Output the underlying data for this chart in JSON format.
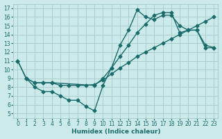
{
  "bg_color": "#cceaea",
  "grid_color": "#aacfcf",
  "line_color": "#1a6b6b",
  "line_width": 1.0,
  "marker": "D",
  "marker_size": 2.5,
  "xlabel": "Humidex (Indice chaleur)",
  "xlim": [
    -0.5,
    23.5
  ],
  "ylim": [
    4.5,
    17.5
  ],
  "xticks": [
    0,
    1,
    2,
    3,
    4,
    5,
    6,
    7,
    8,
    9,
    10,
    11,
    12,
    13,
    14,
    15,
    16,
    17,
    18,
    19,
    20,
    21,
    22,
    23
  ],
  "yticks": [
    5,
    6,
    7,
    8,
    9,
    10,
    11,
    12,
    13,
    14,
    15,
    16,
    17
  ],
  "line1_x": [
    0,
    1,
    2,
    3,
    4,
    5,
    6,
    7,
    8,
    9,
    10,
    11,
    12,
    13,
    14,
    15,
    16,
    17,
    18,
    19,
    20,
    21,
    22,
    23
  ],
  "line1_y": [
    11,
    9,
    8,
    7.5,
    7.5,
    7.0,
    6.5,
    6.5,
    5.8,
    5.3,
    8.2,
    10.2,
    12.8,
    14.5,
    16.8,
    16.0,
    15.7,
    16.2,
    16.2,
    15.0,
    14.5,
    14.5,
    12.8,
    12.5
  ],
  "line2_x": [
    0,
    1,
    2,
    3,
    4,
    9,
    10,
    11,
    12,
    13,
    14,
    15,
    16,
    17,
    18,
    19,
    20,
    21,
    22,
    23
  ],
  "line2_y": [
    11,
    9,
    8.5,
    8.5,
    8.5,
    8.2,
    9.0,
    10.2,
    11.5,
    12.8,
    14.2,
    15.2,
    16.2,
    16.5,
    16.5,
    14.2,
    14.5,
    14.5,
    12.5,
    12.5
  ],
  "line3_x": [
    1,
    2,
    3,
    4,
    5,
    6,
    7,
    8,
    9,
    10,
    11,
    12,
    13,
    14,
    15,
    16,
    17,
    18,
    19,
    20,
    21,
    22,
    23
  ],
  "line3_y": [
    9,
    8.5,
    8.5,
    8.5,
    8.2,
    8.2,
    8.2,
    8.2,
    8.3,
    8.8,
    9.5,
    10.2,
    10.8,
    11.5,
    12.0,
    12.5,
    13.0,
    13.5,
    14.0,
    14.5,
    15.0,
    15.5,
    16.0
  ]
}
